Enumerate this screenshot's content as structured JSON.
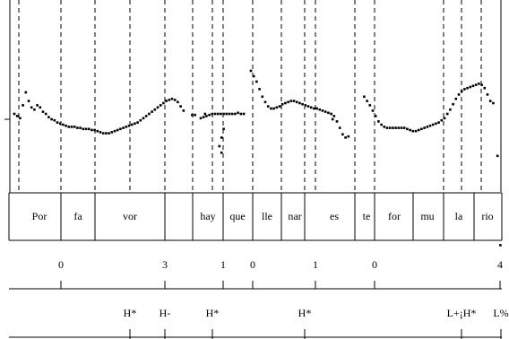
{
  "chart_data": {
    "type": "scatter",
    "description_kind": "ToBI-labelled F0 pitch track",
    "syllables": [
      "Por",
      "fa",
      "vor",
      "hay",
      "que",
      "lle",
      "nar",
      "es",
      "te",
      "for",
      "mu",
      "la",
      "rio"
    ],
    "break_indices": [
      "0",
      "3",
      "1",
      "0",
      "1",
      "0",
      "4"
    ],
    "tones": [
      "H*",
      "H-",
      "H*",
      "H*",
      "L+¡H*",
      "L%"
    ],
    "f0_segments": [
      [
        [
          0.0,
          0.4
        ],
        [
          0.4,
          0.38
        ],
        [
          0.8,
          0.36
        ],
        [
          1.2,
          0.48
        ],
        [
          1.6,
          0.6
        ],
        [
          2.0,
          0.52
        ],
        [
          2.4,
          0.46
        ],
        [
          2.8,
          0.44
        ],
        [
          3.2,
          0.48
        ],
        [
          3.6,
          0.46
        ],
        [
          4.0,
          0.42
        ],
        [
          4.4,
          0.4
        ],
        [
          4.8,
          0.37
        ],
        [
          5.2,
          0.35
        ],
        [
          5.6,
          0.34
        ],
        [
          6.0,
          0.32
        ],
        [
          6.4,
          0.31
        ],
        [
          6.8,
          0.3
        ],
        [
          7.2,
          0.29
        ],
        [
          7.6,
          0.28
        ],
        [
          8.0,
          0.28
        ],
        [
          8.4,
          0.28
        ],
        [
          8.8,
          0.27
        ],
        [
          9.2,
          0.27
        ],
        [
          9.6,
          0.26
        ],
        [
          10.0,
          0.26
        ],
        [
          10.4,
          0.26
        ],
        [
          10.8,
          0.25
        ],
        [
          11.2,
          0.25
        ],
        [
          11.6,
          0.24
        ],
        [
          12.0,
          0.23
        ],
        [
          12.4,
          0.22
        ],
        [
          12.8,
          0.22
        ],
        [
          13.2,
          0.22
        ],
        [
          13.6,
          0.23
        ],
        [
          14.0,
          0.24
        ],
        [
          14.4,
          0.25
        ],
        [
          14.8,
          0.26
        ],
        [
          15.2,
          0.27
        ],
        [
          15.6,
          0.28
        ],
        [
          16.0,
          0.29
        ],
        [
          16.4,
          0.3
        ],
        [
          16.8,
          0.31
        ],
        [
          17.2,
          0.32
        ],
        [
          17.6,
          0.34
        ],
        [
          18.0,
          0.36
        ],
        [
          18.4,
          0.38
        ],
        [
          18.8,
          0.4
        ],
        [
          19.2,
          0.42
        ],
        [
          19.6,
          0.44
        ],
        [
          20.0,
          0.46
        ],
        [
          20.4,
          0.48
        ],
        [
          20.8,
          0.5
        ],
        [
          21.2,
          0.52
        ],
        [
          21.6,
          0.53
        ],
        [
          22.0,
          0.54
        ],
        [
          22.4,
          0.53
        ],
        [
          22.8,
          0.51
        ],
        [
          23.2,
          0.47
        ],
        [
          23.6,
          0.43
        ]
      ],
      [
        [
          26.0,
          0.36
        ],
        [
          26.4,
          0.37
        ],
        [
          26.8,
          0.38
        ],
        [
          27.2,
          0.39
        ],
        [
          27.6,
          0.4
        ],
        [
          28.0,
          0.4
        ],
        [
          28.4,
          0.4
        ],
        [
          28.8,
          0.4
        ],
        [
          29.2,
          0.4
        ],
        [
          29.6,
          0.4
        ],
        [
          30.0,
          0.4
        ],
        [
          30.4,
          0.4
        ],
        [
          30.8,
          0.4
        ],
        [
          31.2,
          0.41
        ],
        [
          31.6,
          0.4
        ],
        [
          32.0,
          0.4
        ]
      ],
      [
        [
          28.6,
          0.1
        ],
        [
          28.9,
          0.18
        ],
        [
          29.2,
          0.26
        ]
      ],
      [
        [
          33.0,
          0.8
        ],
        [
          33.4,
          0.75
        ],
        [
          33.8,
          0.7
        ],
        [
          34.2,
          0.63
        ],
        [
          34.6,
          0.56
        ],
        [
          35.0,
          0.51
        ],
        [
          35.4,
          0.47
        ],
        [
          35.8,
          0.45
        ],
        [
          36.2,
          0.45
        ],
        [
          36.6,
          0.46
        ],
        [
          37.0,
          0.47
        ],
        [
          37.4,
          0.49
        ],
        [
          37.8,
          0.5
        ],
        [
          38.2,
          0.51
        ],
        [
          38.6,
          0.52
        ],
        [
          39.0,
          0.52
        ],
        [
          39.4,
          0.51
        ],
        [
          39.8,
          0.5
        ],
        [
          40.2,
          0.49
        ],
        [
          40.6,
          0.48
        ],
        [
          41.0,
          0.47
        ],
        [
          41.4,
          0.46
        ],
        [
          41.8,
          0.45
        ],
        [
          42.2,
          0.45
        ],
        [
          42.6,
          0.44
        ],
        [
          43.0,
          0.43
        ],
        [
          43.4,
          0.42
        ],
        [
          43.8,
          0.41
        ],
        [
          44.2,
          0.4
        ],
        [
          44.6,
          0.38
        ],
        [
          45.0,
          0.33
        ],
        [
          45.4,
          0.27
        ],
        [
          45.8,
          0.21
        ],
        [
          46.2,
          0.18
        ],
        [
          46.6,
          0.19
        ]
      ],
      [
        [
          48.8,
          0.56
        ],
        [
          49.2,
          0.52
        ],
        [
          49.6,
          0.48
        ],
        [
          50.0,
          0.43
        ],
        [
          50.4,
          0.38
        ],
        [
          50.8,
          0.33
        ],
        [
          51.2,
          0.3
        ],
        [
          51.6,
          0.28
        ],
        [
          52.0,
          0.27
        ],
        [
          52.4,
          0.27
        ],
        [
          52.8,
          0.27
        ],
        [
          53.2,
          0.27
        ],
        [
          53.6,
          0.27
        ],
        [
          54.0,
          0.27
        ],
        [
          54.4,
          0.27
        ],
        [
          54.8,
          0.26
        ],
        [
          55.2,
          0.25
        ],
        [
          55.6,
          0.24
        ],
        [
          56.0,
          0.24
        ],
        [
          56.4,
          0.25
        ],
        [
          56.8,
          0.26
        ],
        [
          57.2,
          0.27
        ],
        [
          57.6,
          0.28
        ],
        [
          58.0,
          0.29
        ],
        [
          58.4,
          0.3
        ],
        [
          58.8,
          0.31
        ],
        [
          59.2,
          0.32
        ],
        [
          59.6,
          0.34
        ],
        [
          60.0,
          0.36
        ],
        [
          60.4,
          0.4
        ],
        [
          60.8,
          0.44
        ],
        [
          61.2,
          0.49
        ],
        [
          61.6,
          0.54
        ],
        [
          62.0,
          0.58
        ],
        [
          62.4,
          0.61
        ],
        [
          62.8,
          0.63
        ],
        [
          63.2,
          0.64
        ],
        [
          63.6,
          0.65
        ],
        [
          64.0,
          0.66
        ],
        [
          64.4,
          0.67
        ],
        [
          64.8,
          0.68
        ],
        [
          65.2,
          0.67
        ],
        [
          65.6,
          0.64
        ],
        [
          66.0,
          0.58
        ],
        [
          66.4,
          0.52
        ],
        [
          66.8,
          0.5
        ]
      ]
    ],
    "f0_isolated_points": [
      [
        24.8,
        0.39
      ],
      [
        25.2,
        0.39
      ],
      [
        26.6,
        0.4
      ],
      [
        28.9,
        0.04
      ],
      [
        44.4,
        0.35
      ],
      [
        67.4,
        0.01
      ],
      [
        67.8,
        -0.82
      ]
    ]
  }
}
